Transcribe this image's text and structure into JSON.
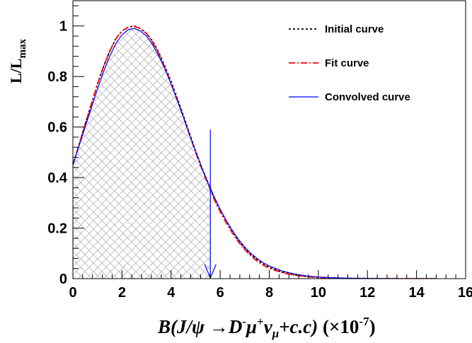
{
  "chart_data": {
    "type": "line",
    "xlim": [
      0,
      16
    ],
    "ylim": [
      0,
      1.1
    ],
    "xticks": [
      0,
      2,
      4,
      6,
      8,
      10,
      12,
      14,
      16
    ],
    "yticks": [
      0,
      0.2,
      0.4,
      0.6,
      0.8,
      1
    ],
    "xtick_labels": [
      "0",
      "2",
      "4",
      "6",
      "8",
      "10",
      "12",
      "14",
      "16"
    ],
    "ytick_labels": [
      "0",
      "0.2",
      "0.4",
      "0.6",
      "0.8",
      "1"
    ],
    "ylabel": {
      "main": "L/L",
      "sub": "max"
    },
    "xlabel": {
      "pre": "B(J/",
      "psi": "ψ",
      "arrow": " →D",
      "minus": "-",
      "mu": "μ",
      "plus": "+",
      "nu": "ν",
      "nu_sub": "μ",
      "post": "+c.c)",
      "scale": " (×10",
      "exp": "-7",
      "close": ")"
    },
    "legend_placement": "top-right",
    "x": [
      0,
      0.25,
      0.5,
      0.75,
      1,
      1.25,
      1.5,
      1.75,
      2,
      2.25,
      2.5,
      2.75,
      3,
      3.25,
      3.5,
      3.75,
      4,
      4.25,
      4.5,
      4.75,
      5,
      5.25,
      5.5,
      5.75,
      6,
      6.25,
      6.5,
      6.75,
      7,
      7.25,
      7.5,
      7.75,
      8,
      8.5,
      9,
      9.5,
      10,
      10.5,
      11,
      11.5,
      12,
      12.5,
      13,
      13.5,
      14,
      14.5,
      14.8
    ],
    "series": [
      {
        "name": "Initial curve",
        "style": "dotted",
        "color": "#000000",
        "values": [
          0.45,
          0.53,
          0.61,
          0.69,
          0.77,
          0.84,
          0.9,
          0.95,
          0.98,
          0.995,
          1.0,
          0.99,
          0.97,
          0.94,
          0.895,
          0.84,
          0.78,
          0.715,
          0.645,
          0.575,
          0.505,
          0.44,
          0.38,
          0.32,
          0.27,
          0.225,
          0.185,
          0.15,
          0.12,
          0.095,
          0.075,
          0.058,
          0.045,
          0.027,
          0.016,
          0.009,
          0.005,
          0.003,
          0.002,
          0.001,
          0.0007,
          0.0004,
          0.0002,
          0.0001,
          0.0001,
          0.0,
          0.0
        ]
      },
      {
        "name": "Fit curve",
        "style": "dashdot",
        "color": "#ff0000",
        "values": [
          0.45,
          0.53,
          0.61,
          0.69,
          0.77,
          0.84,
          0.9,
          0.95,
          0.98,
          0.995,
          0.998,
          0.99,
          0.97,
          0.935,
          0.89,
          0.835,
          0.775,
          0.71,
          0.64,
          0.57,
          0.5,
          0.435,
          0.375,
          0.315,
          0.265,
          0.22,
          0.18,
          0.145,
          0.115,
          0.09,
          0.07,
          0.054,
          0.041,
          0.024,
          0.014,
          0.008,
          0.004,
          0.002,
          0.001,
          0.0006,
          0.0003,
          0.0002,
          0.0001,
          0.0,
          0.0,
          0.0,
          0.0
        ]
      },
      {
        "name": "Convolved curve",
        "style": "solid",
        "color": "#0000ff",
        "values": [
          0.45,
          0.525,
          0.6,
          0.675,
          0.75,
          0.82,
          0.88,
          0.93,
          0.965,
          0.985,
          0.99,
          0.98,
          0.96,
          0.925,
          0.88,
          0.83,
          0.77,
          0.705,
          0.64,
          0.57,
          0.505,
          0.44,
          0.38,
          0.325,
          0.275,
          0.23,
          0.19,
          0.155,
          0.125,
          0.1,
          0.08,
          0.063,
          0.05,
          0.031,
          0.019,
          0.011,
          0.0065,
          0.0038,
          0.0022,
          0.0012,
          0.0007,
          0.0004,
          0.0002,
          0.0001,
          0.0001,
          0.0,
          0.0
        ]
      }
    ],
    "limit_marker": {
      "x": 5.6,
      "arrow_top_y": 0.59
    },
    "shaded_region": {
      "from": 0,
      "to": 5.6,
      "pattern": "crosshatch"
    }
  }
}
